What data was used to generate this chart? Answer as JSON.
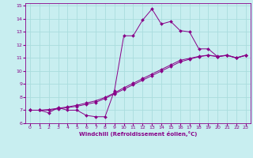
{
  "xlabel": "Windchill (Refroidissement éolien,°C)",
  "background_color": "#c8eef0",
  "line_color": "#880088",
  "grid_color": "#aadddd",
  "xlim": [
    -0.5,
    23.5
  ],
  "ylim": [
    6,
    15.2
  ],
  "xticks": [
    0,
    1,
    2,
    3,
    4,
    5,
    6,
    7,
    8,
    9,
    10,
    11,
    12,
    13,
    14,
    15,
    16,
    17,
    18,
    19,
    20,
    21,
    22,
    23
  ],
  "yticks": [
    6,
    7,
    8,
    9,
    10,
    11,
    12,
    13,
    14,
    15
  ],
  "line1_x": [
    0,
    1,
    2,
    3,
    4,
    5,
    6,
    7,
    8,
    9,
    10,
    11,
    12,
    13,
    14,
    15,
    16,
    17,
    18,
    19,
    20,
    21,
    22,
    23
  ],
  "line1_y": [
    7.0,
    7.0,
    6.8,
    7.2,
    7.0,
    7.0,
    6.6,
    6.5,
    6.5,
    8.5,
    12.7,
    12.7,
    13.9,
    14.75,
    13.6,
    13.8,
    13.1,
    13.0,
    11.7,
    11.7,
    11.1,
    11.2,
    11.0,
    11.2
  ],
  "line2_x": [
    0,
    1,
    2,
    3,
    4,
    5,
    6,
    7,
    8,
    9,
    10,
    11,
    12,
    13,
    14,
    15,
    16,
    17,
    18,
    19,
    20,
    21,
    22,
    23
  ],
  "line2_y": [
    7.0,
    7.0,
    7.0,
    7.1,
    7.2,
    7.3,
    7.45,
    7.6,
    7.9,
    8.25,
    8.6,
    8.95,
    9.3,
    9.65,
    10.0,
    10.35,
    10.7,
    10.9,
    11.1,
    11.2,
    11.1,
    11.2,
    11.0,
    11.2
  ],
  "line3_x": [
    0,
    1,
    2,
    3,
    4,
    5,
    6,
    7,
    8,
    9,
    10,
    11,
    12,
    13,
    14,
    15,
    16,
    17,
    18,
    19,
    20,
    21,
    22,
    23
  ],
  "line3_y": [
    7.0,
    7.0,
    7.05,
    7.15,
    7.25,
    7.38,
    7.55,
    7.72,
    7.98,
    8.32,
    8.72,
    9.06,
    9.42,
    9.77,
    10.12,
    10.47,
    10.82,
    10.97,
    11.12,
    11.22,
    11.12,
    11.22,
    11.02,
    11.22
  ]
}
